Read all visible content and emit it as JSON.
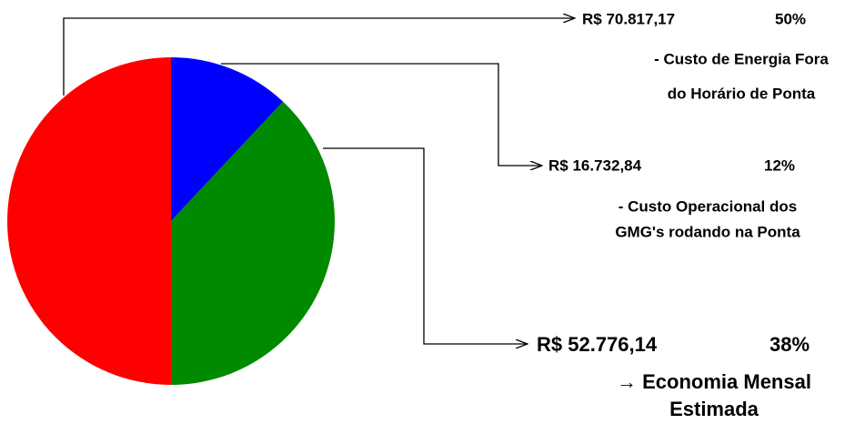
{
  "chart_data": {
    "type": "pie",
    "values": [
      50,
      12,
      38
    ],
    "value_labels": [
      "50%",
      "12%",
      "38%"
    ],
    "colors": [
      "#ff0000",
      "#0000ff",
      "#008a00"
    ],
    "amounts": [
      "R$ 70.817,17",
      "R$ 16.732,84",
      "R$ 52.776,14"
    ],
    "descriptions": [
      [
        "- Custo de Energia  Fora",
        "do Horário de Ponta"
      ],
      [
        "- Custo Operacional dos",
        "GMG's rodando na Ponta"
      ],
      [
        "→ Economia Mensal",
        "Estimada"
      ]
    ]
  }
}
